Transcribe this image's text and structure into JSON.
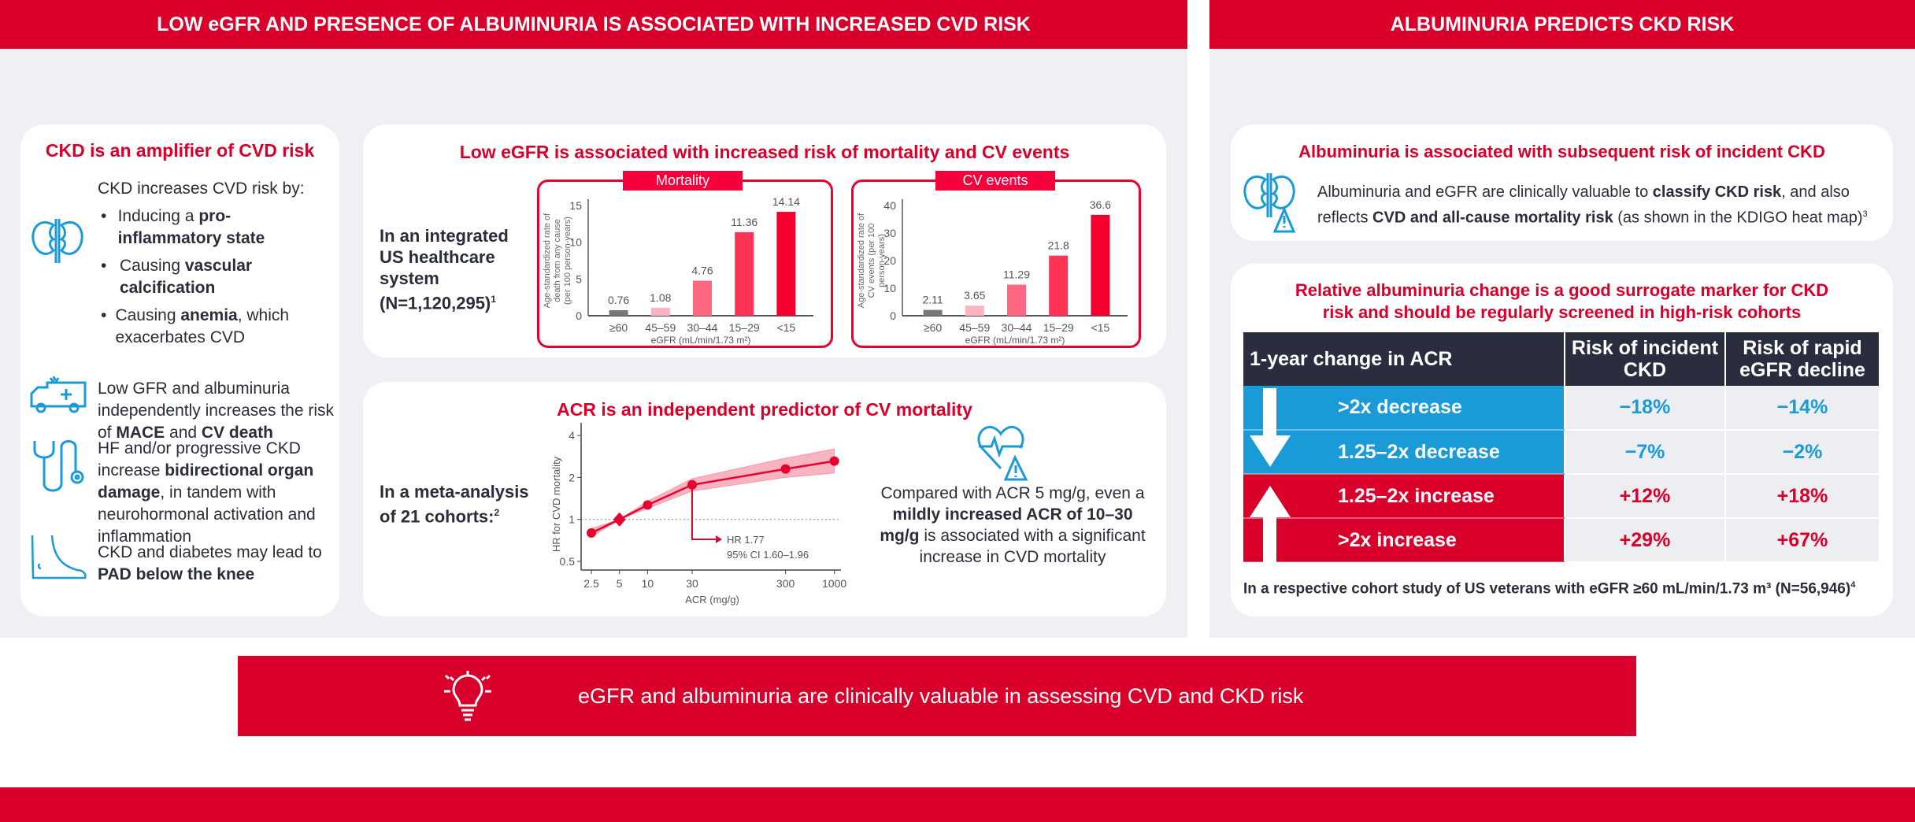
{
  "header": {
    "left": "LOW eGFR AND PRESENCE OF ALBUMINURIA IS ASSOCIATED WITH INCREASED CVD RISK",
    "right": "ALBUMINURIA PREDICTS CKD RISK"
  },
  "card1": {
    "title": "CKD is an amplifier of CVD risk",
    "intro": "CKD increases CVD risk by:",
    "bullets": [
      [
        "Inducing a ",
        "pro-inflammatory state",
        ""
      ],
      [
        "Causing ",
        "vascular calcification",
        ""
      ],
      [
        "Causing ",
        "anemia",
        ", which exacerbates CVD"
      ]
    ],
    "item2": [
      "Low GFR and albuminuria independently increases the risk of ",
      "MACE",
      " and ",
      "CV death"
    ],
    "item3": [
      "HF and/or progressive CKD increase ",
      "bidirectional organ damage",
      ", in tandem with neurohormonal activation and inflammation"
    ],
    "item4": [
      "CKD and diabetes may lead to ",
      "PAD below the knee"
    ],
    "icons": [
      "kidney-icon",
      "ambulance-icon",
      "stethoscope-icon",
      "foot-icon"
    ]
  },
  "card2": {
    "title": "Low eGFR is associated with increased risk of mortality and CV events",
    "population": "In an integrated US healthcare system (N=1,120,295)",
    "population_sup": "1"
  },
  "card3": {
    "title": "ACR is an independent predictor of CV mortality",
    "population": "In a meta-analysis of 21 cohorts:",
    "population_sup": "2",
    "note": [
      "Compared with ACR 5 mg/g, even a ",
      "mildly increased ACR of 10–30 mg/g",
      " is associated with a significant increase in CVD mortality"
    ]
  },
  "cardA": {
    "title": "Albuminuria is associated with subsequent risk of incident CKD",
    "text": [
      "Albuminuria and eGFR are clinically valuable to ",
      "classify CKD risk",
      ", and also reflects ",
      "CVD and all-cause mortality risk",
      " (as shown in the KDIGO heat map)"
    ],
    "sup": "3"
  },
  "cardB": {
    "title": "Relative albuminuria change is a good surrogate marker for CKD risk and should be regularly screened in high-risk cohorts",
    "table": {
      "headers": [
        "1-year change in ACR",
        "Risk of incident CKD",
        "Risk of rapid eGFR decline"
      ],
      "rows": [
        [
          ">2x decrease",
          "−18%",
          "−14%"
        ],
        [
          "1.25–2x decrease",
          "−7%",
          "−2%"
        ],
        [
          "1.25–2x increase",
          "+12%",
          "+18%"
        ],
        [
          ">2x increase",
          "+29%",
          "+67%"
        ]
      ]
    },
    "footnote": "In a respective cohort study of US veterans with eGFR ≥60 mL/min/1.73 m³ (N=56,946)",
    "footnote_sup": "4"
  },
  "banner": {
    "text": "eGFR and albuminuria are clinically valuable in assessing CVD and CKD risk",
    "icon": "lightbulb-icon"
  },
  "colors": {
    "brand_red": "#d8002a",
    "accent_blue": "#1a9ad6",
    "dark": "#2a2d3e"
  },
  "chart_data": [
    {
      "type": "bar",
      "title": "Mortality",
      "categories": [
        "≥60",
        "45–59",
        "30–44",
        "15–29",
        "<15"
      ],
      "values": [
        0.76,
        1.08,
        4.76,
        11.36,
        14.14
      ],
      "ylim": [
        0,
        15
      ],
      "yticks": [
        0,
        5,
        10,
        15
      ],
      "ylabel": "Age-standardized rate of death from any cause (per 100 person-years)",
      "xlabel": "eGFR (mL/min/1.73 m²)",
      "colors": [
        "#777777",
        "#ffb3c1",
        "#ff6680",
        "#ff3355",
        "#f5002e"
      ]
    },
    {
      "type": "bar",
      "title": "CV events",
      "categories": [
        "≥60",
        "45–59",
        "30–44",
        "15–29",
        "<15"
      ],
      "values": [
        2.11,
        3.65,
        11.29,
        21.8,
        36.6
      ],
      "ylim": [
        0,
        40
      ],
      "yticks": [
        0,
        10,
        20,
        30,
        40
      ],
      "ylabel": "Age-standardized rate of CV events (per 100 person-years)",
      "xlabel": "eGFR (mL/min/1.73 m²)",
      "colors": [
        "#777777",
        "#ffb3c1",
        "#ff6680",
        "#ff3355",
        "#f5002e"
      ]
    },
    {
      "type": "line",
      "x": [
        2.5,
        5,
        10,
        30,
        300,
        1000
      ],
      "y": [
        0.8,
        1.0,
        1.27,
        1.77,
        2.3,
        2.62
      ],
      "ci_low": [
        0.75,
        1.0,
        1.2,
        1.6,
        2.0,
        2.15
      ],
      "ci_high": [
        0.86,
        1.0,
        1.35,
        1.96,
        2.75,
        3.2
      ],
      "xscale": "log",
      "yscale": "log",
      "xticks": [
        2.5,
        5,
        10,
        30,
        300,
        1000
      ],
      "yticks": [
        0.5,
        1,
        2,
        4
      ],
      "xlabel": "ACR (mg/g)",
      "ylabel": "HR for CVD mortality",
      "reference_line": 1,
      "annotation": [
        "HR 1.77",
        "95% CI 1.60–1.96"
      ],
      "color": "#e8002e"
    }
  ]
}
